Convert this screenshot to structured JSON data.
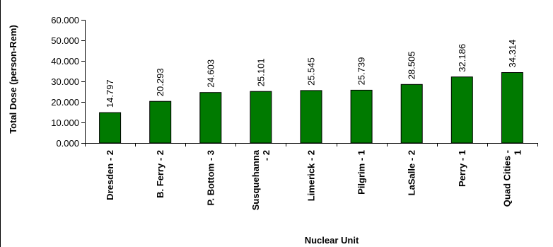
{
  "chart_data": {
    "type": "bar",
    "title": "",
    "xlabel": "Nuclear Unit",
    "ylabel": "Total Dose (person-Rem)",
    "ylim": [
      0,
      60
    ],
    "yticks": [
      "0.000",
      "10.000",
      "20.000",
      "30.000",
      "40.000",
      "50.000",
      "60.000"
    ],
    "grid": false,
    "legend": "none",
    "bar_color": "#007a00",
    "bar_edge_color": "#000000",
    "categories": [
      [
        "Dresden - 2"
      ],
      [
        "B. Ferry - 2"
      ],
      [
        "P. Bottom - 3"
      ],
      [
        "Susquehanna",
        "- 2"
      ],
      [
        "Limerick - 2"
      ],
      [
        "Pilgrim - 1"
      ],
      [
        "LaSalle - 2"
      ],
      [
        "Perry - 1"
      ],
      [
        "Quad Cities -",
        "1"
      ]
    ],
    "values": [
      14.797,
      20.293,
      24.603,
      25.101,
      25.545,
      25.739,
      28.505,
      32.186,
      34.314
    ],
    "value_labels": [
      "14.797",
      "20.293",
      "24.603",
      "25.101",
      "25.545",
      "25.739",
      "28.505",
      "32.186",
      "34.314"
    ]
  }
}
